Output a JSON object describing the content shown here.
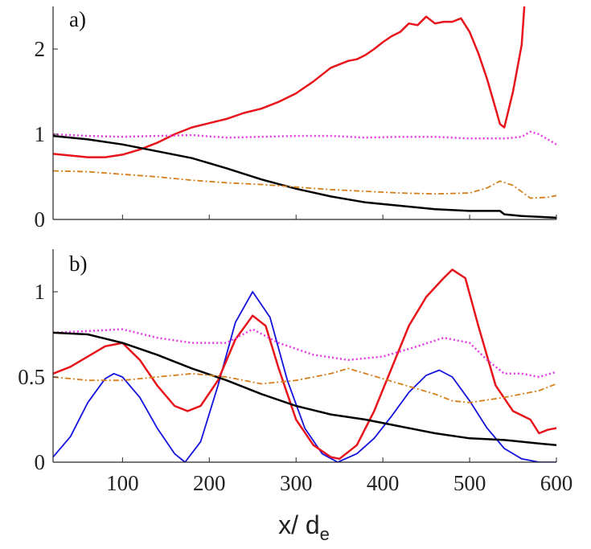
{
  "chart_data": [
    {
      "type": "line",
      "panel_label": "a)",
      "xlim": [
        20,
        600
      ],
      "ylim": [
        0,
        2.5
      ],
      "grid": false,
      "xticks": [
        100,
        200,
        300,
        400,
        500,
        600
      ],
      "yticks": [
        0,
        1,
        2
      ],
      "ytick_labels": [
        "0",
        "1",
        "2"
      ],
      "series": [
        {
          "name": "red solid",
          "color": "#e8141b",
          "style": "solid",
          "width": 2.5,
          "x": [
            20,
            40,
            60,
            80,
            100,
            120,
            140,
            160,
            180,
            200,
            220,
            240,
            260,
            280,
            300,
            320,
            340,
            360,
            370,
            380,
            390,
            400,
            410,
            420,
            430,
            440,
            450,
            460,
            470,
            480,
            490,
            500,
            510,
            520,
            530,
            535,
            540,
            550,
            560,
            563
          ],
          "y": [
            0.77,
            0.75,
            0.73,
            0.73,
            0.76,
            0.82,
            0.9,
            1.0,
            1.08,
            1.13,
            1.18,
            1.25,
            1.3,
            1.38,
            1.48,
            1.62,
            1.78,
            1.86,
            1.88,
            1.93,
            2.0,
            2.08,
            2.15,
            2.2,
            2.3,
            2.28,
            2.38,
            2.3,
            2.32,
            2.32,
            2.36,
            2.2,
            1.95,
            1.65,
            1.3,
            1.12,
            1.08,
            1.5,
            2.05,
            2.5
          ]
        },
        {
          "name": "magenta dotted",
          "color": "#e53ae6",
          "style": "dotted",
          "width": 2.5,
          "x": [
            20,
            60,
            100,
            140,
            180,
            220,
            260,
            300,
            340,
            380,
            420,
            460,
            500,
            540,
            560,
            570,
            580,
            590,
            600
          ],
          "y": [
            1.0,
            0.98,
            0.97,
            0.98,
            0.99,
            0.96,
            0.97,
            0.98,
            0.98,
            0.96,
            0.97,
            0.97,
            0.95,
            0.95,
            0.97,
            1.03,
            1.0,
            0.94,
            0.88
          ]
        },
        {
          "name": "black solid",
          "color": "#000000",
          "style": "solid",
          "width": 2.5,
          "x": [
            20,
            60,
            100,
            140,
            180,
            220,
            260,
            300,
            340,
            380,
            420,
            460,
            500,
            530,
            535,
            540,
            560,
            580,
            600
          ],
          "y": [
            0.98,
            0.94,
            0.88,
            0.8,
            0.72,
            0.6,
            0.47,
            0.36,
            0.27,
            0.2,
            0.16,
            0.12,
            0.1,
            0.1,
            0.1,
            0.06,
            0.04,
            0.03,
            0.02
          ]
        },
        {
          "name": "orange dash-dot",
          "color": "#d47e1c",
          "style": "dashdot",
          "width": 1.8,
          "x": [
            20,
            60,
            100,
            140,
            180,
            220,
            260,
            300,
            340,
            380,
            420,
            460,
            500,
            520,
            535,
            550,
            570,
            590,
            600
          ],
          "y": [
            0.57,
            0.56,
            0.53,
            0.5,
            0.46,
            0.43,
            0.41,
            0.38,
            0.35,
            0.33,
            0.31,
            0.3,
            0.31,
            0.37,
            0.45,
            0.4,
            0.25,
            0.26,
            0.28
          ]
        }
      ]
    },
    {
      "type": "line",
      "panel_label": "b)",
      "xlabel": "x/ d",
      "xlabel_sub": "e",
      "xlim": [
        20,
        600
      ],
      "ylim": [
        0,
        1.25
      ],
      "grid": false,
      "xticks": [
        100,
        200,
        300,
        400,
        500,
        600
      ],
      "xtick_labels": [
        "100",
        "200",
        "300",
        "400",
        "500",
        "600"
      ],
      "yticks": [
        0,
        0.5,
        1
      ],
      "ytick_labels": [
        "0",
        "0.5",
        "1"
      ],
      "series": [
        {
          "name": "blue solid",
          "color": "#1313dd",
          "style": "solid",
          "width": 1.8,
          "x": [
            20,
            40,
            60,
            80,
            90,
            100,
            120,
            140,
            160,
            172,
            190,
            210,
            230,
            250,
            270,
            290,
            310,
            330,
            348,
            370,
            390,
            410,
            430,
            450,
            465,
            480,
            500,
            520,
            540,
            560,
            580,
            595,
            600
          ],
          "y": [
            0.03,
            0.15,
            0.35,
            0.49,
            0.52,
            0.5,
            0.38,
            0.2,
            0.05,
            0.0,
            0.12,
            0.45,
            0.82,
            1.0,
            0.85,
            0.48,
            0.2,
            0.05,
            0.0,
            0.05,
            0.14,
            0.27,
            0.41,
            0.51,
            0.54,
            0.5,
            0.36,
            0.2,
            0.08,
            0.02,
            0.0,
            0.0,
            0.0
          ]
        },
        {
          "name": "red solid",
          "color": "#e8141b",
          "style": "solid",
          "width": 2.5,
          "x": [
            20,
            40,
            60,
            80,
            100,
            120,
            140,
            160,
            175,
            190,
            210,
            230,
            250,
            265,
            280,
            300,
            320,
            340,
            350,
            370,
            390,
            410,
            430,
            450,
            470,
            480,
            495,
            510,
            530,
            550,
            570,
            580,
            590,
            600
          ],
          "y": [
            0.52,
            0.56,
            0.62,
            0.68,
            0.7,
            0.6,
            0.45,
            0.33,
            0.3,
            0.33,
            0.48,
            0.72,
            0.86,
            0.8,
            0.55,
            0.25,
            0.1,
            0.03,
            0.02,
            0.1,
            0.3,
            0.55,
            0.8,
            0.97,
            1.08,
            1.13,
            1.08,
            0.8,
            0.45,
            0.3,
            0.25,
            0.17,
            0.19,
            0.2
          ]
        },
        {
          "name": "magenta dotted",
          "color": "#e53ae6",
          "style": "dotted",
          "width": 2.5,
          "x": [
            20,
            60,
            100,
            140,
            180,
            220,
            250,
            280,
            320,
            360,
            400,
            440,
            470,
            500,
            520,
            540,
            560,
            580,
            600
          ],
          "y": [
            0.76,
            0.77,
            0.78,
            0.73,
            0.7,
            0.7,
            0.78,
            0.7,
            0.63,
            0.6,
            0.62,
            0.68,
            0.73,
            0.7,
            0.6,
            0.52,
            0.52,
            0.5,
            0.53
          ]
        },
        {
          "name": "black solid",
          "color": "#000000",
          "style": "solid",
          "width": 2.5,
          "x": [
            20,
            60,
            100,
            140,
            180,
            220,
            260,
            300,
            340,
            380,
            420,
            460,
            500,
            540,
            580,
            600
          ],
          "y": [
            0.76,
            0.75,
            0.7,
            0.63,
            0.55,
            0.48,
            0.4,
            0.33,
            0.28,
            0.25,
            0.21,
            0.17,
            0.14,
            0.13,
            0.11,
            0.1
          ]
        },
        {
          "name": "orange dash-dot",
          "color": "#d47e1c",
          "style": "dashdot",
          "width": 1.8,
          "x": [
            20,
            60,
            100,
            140,
            180,
            220,
            260,
            300,
            340,
            360,
            380,
            420,
            460,
            480,
            500,
            540,
            580,
            600
          ],
          "y": [
            0.5,
            0.48,
            0.48,
            0.5,
            0.52,
            0.5,
            0.46,
            0.48,
            0.52,
            0.55,
            0.52,
            0.46,
            0.4,
            0.36,
            0.35,
            0.38,
            0.42,
            0.46
          ]
        }
      ]
    }
  ]
}
